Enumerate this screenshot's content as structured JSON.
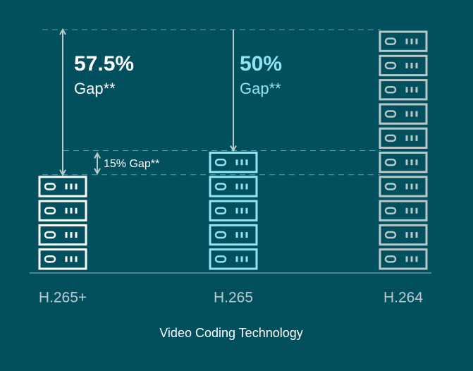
{
  "chart_data": {
    "type": "pictogram",
    "categories": [
      "H.265+",
      "H.265",
      "H.264"
    ],
    "values": [
      4,
      5,
      10
    ],
    "colors": [
      "#ffffff",
      "#8fe6f2",
      "#b9c7c9"
    ],
    "x_label": "Video Coding Technology",
    "annotations": [
      {
        "value_text": "57.5%",
        "text": "Gap**",
        "color": "#ffffff"
      },
      {
        "value_text": "50%",
        "text": "Gap**",
        "color": "#8fe6f2"
      },
      {
        "text": "15% Gap**",
        "color": "#ffffff"
      }
    ]
  }
}
